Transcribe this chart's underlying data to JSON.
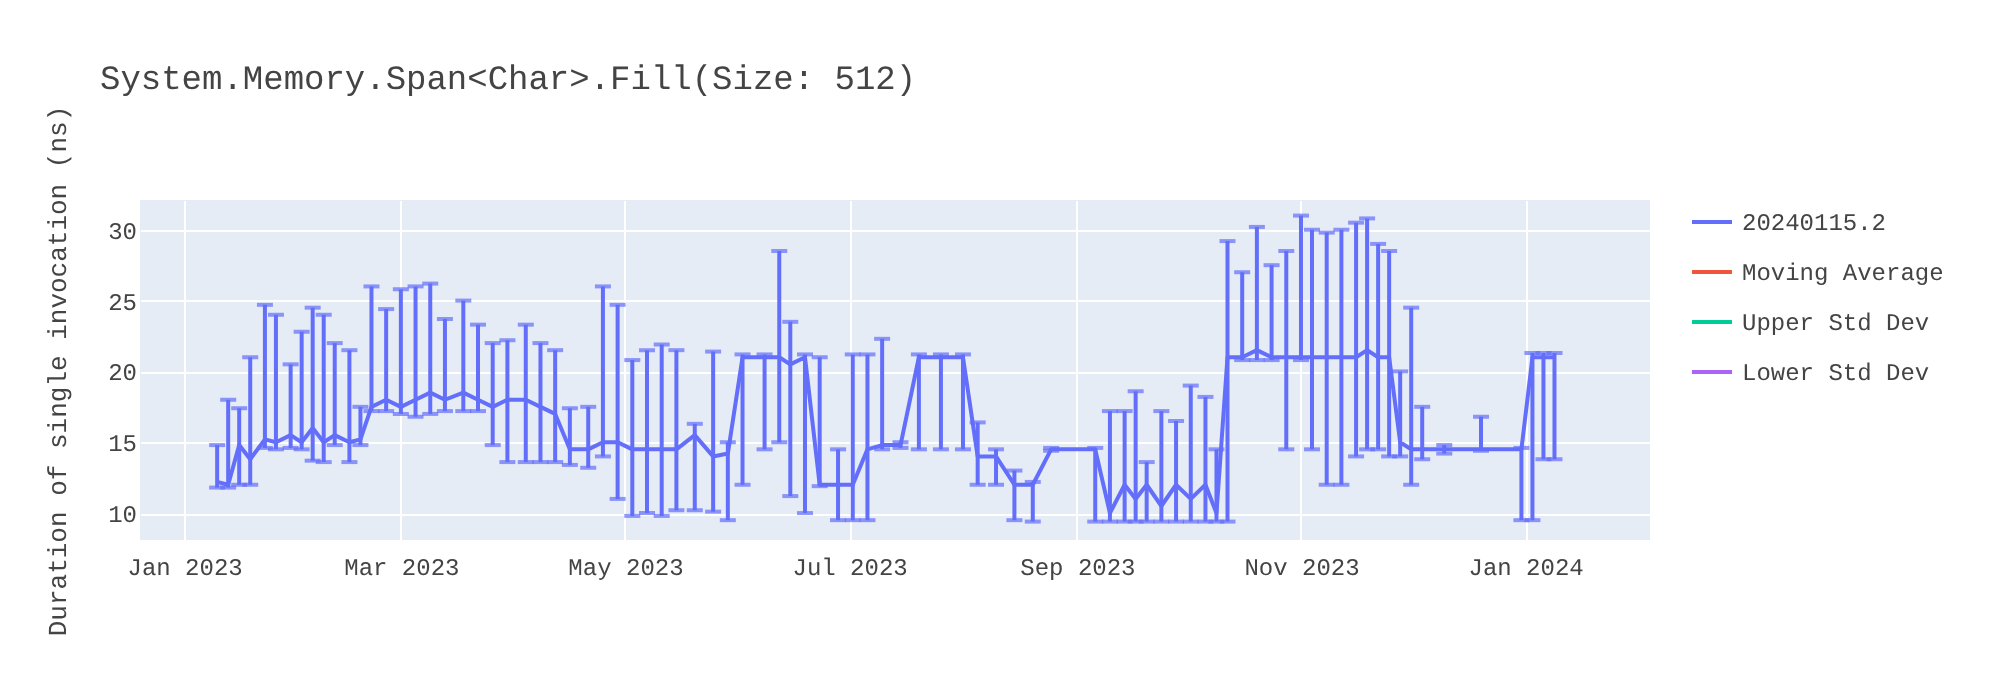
{
  "chart_data": {
    "type": "line",
    "title": "System.Memory.Span<Char>.Fill(Size: 512)",
    "ylabel": "Duration of single invocation (ns)",
    "x": [
      "2023-01-10",
      "2023-01-13",
      "2023-01-16",
      "2023-01-19",
      "2023-01-23",
      "2023-01-26",
      "2023-01-30",
      "2023-02-02",
      "2023-02-05",
      "2023-02-08",
      "2023-02-11",
      "2023-02-15",
      "2023-02-18",
      "2023-02-21",
      "2023-02-25",
      "2023-03-01",
      "2023-03-05",
      "2023-03-09",
      "2023-03-13",
      "2023-03-18",
      "2023-03-22",
      "2023-03-26",
      "2023-03-30",
      "2023-04-04",
      "2023-04-08",
      "2023-04-12",
      "2023-04-16",
      "2023-04-21",
      "2023-04-25",
      "2023-04-29",
      "2023-05-03",
      "2023-05-07",
      "2023-05-11",
      "2023-05-15",
      "2023-05-20",
      "2023-05-25",
      "2023-05-29",
      "2023-06-02",
      "2023-06-08",
      "2023-06-12",
      "2023-06-15",
      "2023-06-19",
      "2023-06-23",
      "2023-06-28",
      "2023-07-02",
      "2023-07-06",
      "2023-07-10",
      "2023-07-15",
      "2023-07-20",
      "2023-07-26",
      "2023-08-01",
      "2023-08-05",
      "2023-08-10",
      "2023-08-15",
      "2023-08-20",
      "2023-08-25",
      "2023-09-06",
      "2023-09-10",
      "2023-09-14",
      "2023-09-17",
      "2023-09-20",
      "2023-09-24",
      "2023-09-28",
      "2023-10-02",
      "2023-10-06",
      "2023-10-09",
      "2023-10-12",
      "2023-10-16",
      "2023-10-20",
      "2023-10-24",
      "2023-10-28",
      "2023-11-01",
      "2023-11-04",
      "2023-11-08",
      "2023-11-12",
      "2023-11-16",
      "2023-11-19",
      "2023-11-22",
      "2023-11-25",
      "2023-11-28",
      "2023-12-01",
      "2023-12-04",
      "2023-12-10",
      "2023-12-20",
      "2023-12-31",
      "2024-01-03",
      "2024-01-06",
      "2024-01-09"
    ],
    "series": [
      {
        "name": "20240115.2",
        "color": "#636efa",
        "values": [
          12.2,
          12.0,
          14.8,
          13.8,
          15.2,
          15.0,
          15.5,
          15.0,
          16.0,
          15.0,
          15.5,
          15.0,
          15.2,
          17.5,
          18.0,
          17.5,
          18.0,
          18.5,
          18.0,
          18.5,
          18.0,
          17.5,
          18.0,
          18.0,
          17.5,
          17.0,
          14.5,
          14.5,
          15.0,
          15.0,
          14.5,
          14.5,
          14.5,
          14.5,
          15.5,
          14.0,
          14.2,
          21.0,
          21.0,
          21.0,
          20.5,
          21.0,
          12.0,
          12.0,
          12.0,
          14.5,
          14.8,
          14.8,
          21.0,
          21.0,
          21.0,
          14.0,
          14.0,
          12.0,
          12.0,
          14.5,
          14.5,
          10.0,
          12.0,
          11.0,
          12.0,
          10.5,
          12.0,
          11.0,
          12.0,
          10.0,
          21.0,
          21.0,
          21.5,
          21.0,
          21.0,
          21.0,
          21.0,
          21.0,
          21.0,
          21.0,
          21.5,
          21.0,
          21.0,
          15.0,
          14.5,
          14.5,
          14.5,
          14.5,
          14.5,
          21.0,
          21.0,
          21.0
        ],
        "errors": [
          [
            11.8,
            14.8
          ],
          [
            11.8,
            18.0
          ],
          [
            12.0,
            17.4
          ],
          [
            12.0,
            21.0
          ],
          [
            14.6,
            24.7
          ],
          [
            14.5,
            24.0
          ],
          [
            14.6,
            20.5
          ],
          [
            14.5,
            22.8
          ],
          [
            13.7,
            24.5
          ],
          [
            13.6,
            24.0
          ],
          [
            14.8,
            22.0
          ],
          [
            13.6,
            21.5
          ],
          [
            14.8,
            17.5
          ],
          [
            17.2,
            26.0
          ],
          [
            17.2,
            24.4
          ],
          [
            17.0,
            25.8
          ],
          [
            16.8,
            26.0
          ],
          [
            17.0,
            26.2
          ],
          [
            17.2,
            23.7
          ],
          [
            17.2,
            25.0
          ],
          [
            17.2,
            23.3
          ],
          [
            14.8,
            22.0
          ],
          [
            13.6,
            22.2
          ],
          [
            13.6,
            23.3
          ],
          [
            13.6,
            22.0
          ],
          [
            13.6,
            21.5
          ],
          [
            13.4,
            17.4
          ],
          [
            13.2,
            17.5
          ],
          [
            14.0,
            26.0
          ],
          [
            11.0,
            24.7
          ],
          [
            9.8,
            20.8
          ],
          [
            10.0,
            21.5
          ],
          [
            9.8,
            21.9
          ],
          [
            10.2,
            21.5
          ],
          [
            10.2,
            16.3
          ],
          [
            10.1,
            21.4
          ],
          [
            9.5,
            15.0
          ],
          [
            12.0,
            21.2
          ],
          [
            14.5,
            21.2
          ],
          [
            15.0,
            28.5
          ],
          [
            11.2,
            23.5
          ],
          [
            10.0,
            21.2
          ],
          [
            11.9,
            21.0
          ],
          [
            9.5,
            14.5
          ],
          [
            9.5,
            21.2
          ],
          [
            9.5,
            21.2
          ],
          [
            14.5,
            22.3
          ],
          [
            14.6,
            15.0
          ],
          [
            14.5,
            21.2
          ],
          [
            14.5,
            21.2
          ],
          [
            14.5,
            21.2
          ],
          [
            12.0,
            16.4
          ],
          [
            12.0,
            14.5
          ],
          [
            9.5,
            13.0
          ],
          [
            9.4,
            12.2
          ],
          [
            14.4,
            14.6
          ],
          [
            9.4,
            14.6
          ],
          [
            9.4,
            17.2
          ],
          [
            9.4,
            17.2
          ],
          [
            9.4,
            18.6
          ],
          [
            9.4,
            13.6
          ],
          [
            9.4,
            17.2
          ],
          [
            9.4,
            16.5
          ],
          [
            9.4,
            19.0
          ],
          [
            9.4,
            18.2
          ],
          [
            9.4,
            14.5
          ],
          [
            9.4,
            29.2
          ],
          [
            20.8,
            27.0
          ],
          [
            20.8,
            30.2
          ],
          [
            20.8,
            27.5
          ],
          [
            14.5,
            28.5
          ],
          [
            20.8,
            31.0
          ],
          [
            14.5,
            30.0
          ],
          [
            12.0,
            29.8
          ],
          [
            12.0,
            30.0
          ],
          [
            14.0,
            30.5
          ],
          [
            14.5,
            30.8
          ],
          [
            14.5,
            29.0
          ],
          [
            14.0,
            28.5
          ],
          [
            14.0,
            20.0
          ],
          [
            12.0,
            24.5
          ],
          [
            13.8,
            17.5
          ],
          [
            14.2,
            14.8
          ],
          [
            14.4,
            16.8
          ],
          [
            9.5,
            14.6
          ],
          [
            9.5,
            21.3
          ],
          [
            13.8,
            21.3
          ],
          [
            13.8,
            21.3
          ]
        ]
      },
      {
        "name": "Moving Average",
        "color": "#ef553b",
        "values": [
          null,
          null,
          null,
          null,
          null,
          null,
          null,
          null,
          null,
          null,
          null,
          null,
          null,
          null,
          null,
          null,
          null,
          null,
          null,
          null,
          null,
          null,
          null,
          null,
          null,
          null,
          null,
          null,
          null,
          null,
          null,
          null,
          null,
          null,
          null,
          null,
          null,
          null,
          null,
          null,
          null,
          null,
          null,
          null,
          null,
          null,
          null,
          null,
          null,
          null,
          null,
          null,
          null,
          null,
          null,
          null,
          null,
          null,
          null,
          null,
          null,
          null,
          null,
          null,
          null,
          null,
          null,
          null,
          null,
          null,
          null,
          null,
          null,
          null,
          null,
          null,
          null,
          null,
          null,
          null,
          null,
          null,
          null,
          null,
          null,
          null,
          null,
          null
        ]
      },
      {
        "name": "Upper Std Dev",
        "color": "#00cc96",
        "values": [
          null,
          null,
          null,
          null,
          null,
          null,
          null,
          null,
          null,
          null,
          null,
          null,
          null,
          null,
          null,
          null,
          null,
          null,
          null,
          null,
          null,
          null,
          null,
          null,
          null,
          null,
          null,
          null,
          null,
          null,
          null,
          null,
          null,
          null,
          null,
          null,
          null,
          null,
          null,
          null,
          null,
          null,
          null,
          null,
          null,
          null,
          null,
          null,
          null,
          null,
          null,
          null,
          null,
          null,
          null,
          null,
          null,
          null,
          null,
          null,
          null,
          null,
          null,
          null,
          null,
          null,
          null,
          null,
          null,
          null,
          null,
          null,
          null,
          null,
          null,
          null,
          null,
          null,
          null,
          null,
          null,
          null,
          null,
          null,
          null,
          null,
          null,
          null
        ]
      },
      {
        "name": "Lower Std Dev",
        "color": "#ab63fa",
        "values": [
          null,
          null,
          null,
          null,
          null,
          null,
          null,
          null,
          null,
          null,
          null,
          null,
          null,
          null,
          null,
          null,
          null,
          null,
          null,
          null,
          null,
          null,
          null,
          null,
          null,
          null,
          null,
          null,
          null,
          null,
          null,
          null,
          null,
          null,
          null,
          null,
          null,
          null,
          null,
          null,
          null,
          null,
          null,
          null,
          null,
          null,
          null,
          null,
          null,
          null,
          null,
          null,
          null,
          null,
          null,
          null,
          null,
          null,
          null,
          null,
          null,
          null,
          null,
          null,
          null,
          null,
          null,
          null,
          null,
          null,
          null,
          null,
          null,
          null,
          null,
          null,
          null,
          null,
          null,
          null,
          null,
          null,
          null,
          null,
          null,
          null,
          null,
          null
        ]
      }
    ],
    "xlim": [
      "2022-12-20",
      "2024-02-04"
    ],
    "xticks": [
      {
        "value": "2023-01-01",
        "label": "Jan 2023"
      },
      {
        "value": "2023-03-01",
        "label": "Mar 2023"
      },
      {
        "value": "2023-05-01",
        "label": "May 2023"
      },
      {
        "value": "2023-07-01",
        "label": "Jul 2023"
      },
      {
        "value": "2023-09-01",
        "label": "Sep 2023"
      },
      {
        "value": "2023-11-01",
        "label": "Nov 2023"
      },
      {
        "value": "2024-01-01",
        "label": "Jan 2024"
      }
    ],
    "ylim": [
      8.1,
      32.1
    ],
    "yticks": [
      10,
      15,
      20,
      25,
      30
    ],
    "grid": true,
    "legend": "top right",
    "marker": "none",
    "line_style": "solid"
  }
}
